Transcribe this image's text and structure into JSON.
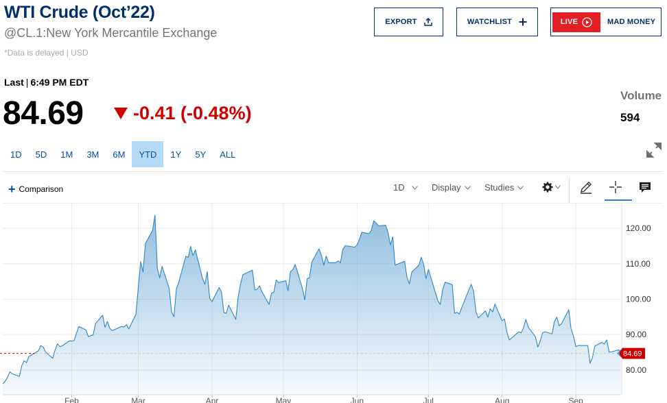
{
  "header": {
    "title": "WTI Crude (Oct’22)",
    "subtitle": "@CL.1:New York Mercantile Exchange",
    "delayed_note": "*Data is delayed | USD",
    "export_label": "EXPORT",
    "watchlist_label": "WATCHLIST",
    "live_label": "LIVE",
    "mad_money_label": "MAD MONEY"
  },
  "quote": {
    "last_label": "Last",
    "last_time": "6:49 PM EDT",
    "price": "84.69",
    "change": "-0.41 (-0.48%)",
    "volume_label": "Volume",
    "volume_value": "594"
  },
  "ranges": [
    "1D",
    "5D",
    "1M",
    "3M",
    "6M",
    "YTD",
    "1Y",
    "5Y",
    "ALL"
  ],
  "active_range": "YTD",
  "toolbar": {
    "comparison_label": "Comparison",
    "interval_label": "1D",
    "display_label": "Display",
    "studies_label": "Studies"
  },
  "icons": [
    "upload-icon",
    "plus-icon",
    "play-circle-icon",
    "down-triangle-icon",
    "expand-icon",
    "gear-icon",
    "pencil-icon",
    "crosshair-icon",
    "comment-icon"
  ],
  "colors": {
    "brand_navy": "#002f6c",
    "live_red": "#e31e24",
    "negative": "#d10000",
    "line": "#3a8bc6",
    "active_range": "#b4daf7",
    "link_blue": "#0050a8"
  },
  "chart_data": {
    "type": "area",
    "title": "",
    "xlabel": "",
    "ylabel": "",
    "x_tick_labels": [
      "Feb",
      "Mar",
      "Apr",
      "May",
      "Jun",
      "Jul",
      "Aug",
      "Sep"
    ],
    "y_tick_labels": [
      "80.00",
      "90.00",
      "100.00",
      "110.00",
      "120.00"
    ],
    "y_ticks": [
      80,
      90,
      100,
      110,
      120
    ],
    "ylim": [
      73,
      127
    ],
    "grid": true,
    "last_price_label": "84.69",
    "last_price": 84.69,
    "series": [
      {
        "x": [
          "2022-01-03",
          "2022-01-04",
          "2022-01-05",
          "2022-01-06",
          "2022-01-07",
          "2022-01-10",
          "2022-01-11",
          "2022-01-12",
          "2022-01-13",
          "2022-01-14",
          "2022-01-18",
          "2022-01-19",
          "2022-01-20",
          "2022-01-21",
          "2022-01-24",
          "2022-01-25",
          "2022-01-26",
          "2022-01-27",
          "2022-01-28",
          "2022-01-31",
          "2022-02-01",
          "2022-02-02",
          "2022-02-03",
          "2022-02-04",
          "2022-02-07",
          "2022-02-08",
          "2022-02-09",
          "2022-02-10",
          "2022-02-11",
          "2022-02-14",
          "2022-02-15",
          "2022-02-16",
          "2022-02-17",
          "2022-02-18",
          "2022-02-22",
          "2022-02-23",
          "2022-02-24",
          "2022-02-25",
          "2022-02-28",
          "2022-03-01",
          "2022-03-02",
          "2022-03-03",
          "2022-03-04",
          "2022-03-07",
          "2022-03-08",
          "2022-03-09",
          "2022-03-10",
          "2022-03-11",
          "2022-03-14",
          "2022-03-15",
          "2022-03-16",
          "2022-03-17",
          "2022-03-18",
          "2022-03-21",
          "2022-03-22",
          "2022-03-23",
          "2022-03-24",
          "2022-03-25",
          "2022-03-28",
          "2022-03-29",
          "2022-03-30",
          "2022-03-31",
          "2022-04-01",
          "2022-04-04",
          "2022-04-05",
          "2022-04-06",
          "2022-04-07",
          "2022-04-08",
          "2022-04-11",
          "2022-04-12",
          "2022-04-13",
          "2022-04-14",
          "2022-04-18",
          "2022-04-19",
          "2022-04-20",
          "2022-04-21",
          "2022-04-22",
          "2022-04-25",
          "2022-04-26",
          "2022-04-27",
          "2022-04-28",
          "2022-04-29",
          "2022-05-02",
          "2022-05-03",
          "2022-05-04",
          "2022-05-05",
          "2022-05-06",
          "2022-05-09",
          "2022-05-10",
          "2022-05-11",
          "2022-05-12",
          "2022-05-13",
          "2022-05-16",
          "2022-05-17",
          "2022-05-18",
          "2022-05-19",
          "2022-05-20",
          "2022-05-23",
          "2022-05-24",
          "2022-05-25",
          "2022-05-26",
          "2022-05-27",
          "2022-05-31",
          "2022-06-01",
          "2022-06-02",
          "2022-06-03",
          "2022-06-06",
          "2022-06-07",
          "2022-06-08",
          "2022-06-09",
          "2022-06-10",
          "2022-06-13",
          "2022-06-14",
          "2022-06-15",
          "2022-06-16",
          "2022-06-17",
          "2022-06-21",
          "2022-06-22",
          "2022-06-23",
          "2022-06-24",
          "2022-06-27",
          "2022-06-28",
          "2022-06-29",
          "2022-06-30",
          "2022-07-01",
          "2022-07-05",
          "2022-07-06",
          "2022-07-07",
          "2022-07-08",
          "2022-07-11",
          "2022-07-12",
          "2022-07-13",
          "2022-07-14",
          "2022-07-15",
          "2022-07-18",
          "2022-07-19",
          "2022-07-20",
          "2022-07-21",
          "2022-07-22",
          "2022-07-25",
          "2022-07-26",
          "2022-07-27",
          "2022-07-28",
          "2022-07-29",
          "2022-08-01",
          "2022-08-02",
          "2022-08-03",
          "2022-08-04",
          "2022-08-05",
          "2022-08-08",
          "2022-08-09",
          "2022-08-10",
          "2022-08-11",
          "2022-08-12",
          "2022-08-15",
          "2022-08-16",
          "2022-08-17",
          "2022-08-18",
          "2022-08-19",
          "2022-08-22",
          "2022-08-23",
          "2022-08-24",
          "2022-08-25",
          "2022-08-26",
          "2022-08-29",
          "2022-08-30",
          "2022-08-31",
          "2022-09-01",
          "2022-09-02",
          "2022-09-06",
          "2022-09-07",
          "2022-09-08",
          "2022-09-09",
          "2022-09-12",
          "2022-09-13",
          "2022-09-14",
          "2022-09-15",
          "2022-09-16",
          "2022-09-19",
          "2022-09-20"
        ],
        "values": [
          76.1,
          76.8,
          77.9,
          79.5,
          78.9,
          78.2,
          81.2,
          82.6,
          82.1,
          83.8,
          85.4,
          86.9,
          86.5,
          85.1,
          83.3,
          85.6,
          87.4,
          86.6,
          86.8,
          88.2,
          88.2,
          88.3,
          90.3,
          92.3,
          91.3,
          89.4,
          89.7,
          89.9,
          93.1,
          95.5,
          92.1,
          93.7,
          91.8,
          91.1,
          92.3,
          92.1,
          92.8,
          91.6,
          95.7,
          103.4,
          110.6,
          107.7,
          115.7,
          119.4,
          123.7,
          108.7,
          106.0,
          109.3,
          103.0,
          96.4,
          95.0,
          102.9,
          104.7,
          112.1,
          111.8,
          114.9,
          112.3,
          113.9,
          105.9,
          104.2,
          107.8,
          100.3,
          99.3,
          103.3,
          102.0,
          96.2,
          96.0,
          98.3,
          94.3,
          100.6,
          104.3,
          106.9,
          108.2,
          102.6,
          102.8,
          103.8,
          102.1,
          98.5,
          101.7,
          102.0,
          105.4,
          104.7,
          105.2,
          102.4,
          107.8,
          108.3,
          109.8,
          103.1,
          99.8,
          105.7,
          106.1,
          110.5,
          114.2,
          112.4,
          109.6,
          112.2,
          110.3,
          110.3,
          110.8,
          110.3,
          114.1,
          115.1,
          114.7,
          115.3,
          116.9,
          118.9,
          118.5,
          119.4,
          122.1,
          121.5,
          120.7,
          120.9,
          118.9,
          115.3,
          117.6,
          109.6,
          110.7,
          106.2,
          104.3,
          107.6,
          109.6,
          111.8,
          109.8,
          105.8,
          108.4,
          99.5,
          98.5,
          102.7,
          104.8,
          104.1,
          96.0,
          96.3,
          95.8,
          97.6,
          102.6,
          104.2,
          102.3,
          96.4,
          94.7,
          96.7,
          94.9,
          97.3,
          96.4,
          98.6,
          93.9,
          94.4,
          90.7,
          88.5,
          89.0,
          90.8,
          90.5,
          91.9,
          94.3,
          92.1,
          89.4,
          86.5,
          88.1,
          90.5,
          90.8,
          90.2,
          93.7,
          94.9,
          92.5,
          93.1,
          97.0,
          91.6,
          89.6,
          86.6,
          86.9,
          86.9,
          81.9,
          83.5,
          86.8,
          87.8,
          87.3,
          88.5,
          85.1,
          85.1,
          85.7,
          84.69
        ]
      }
    ]
  }
}
